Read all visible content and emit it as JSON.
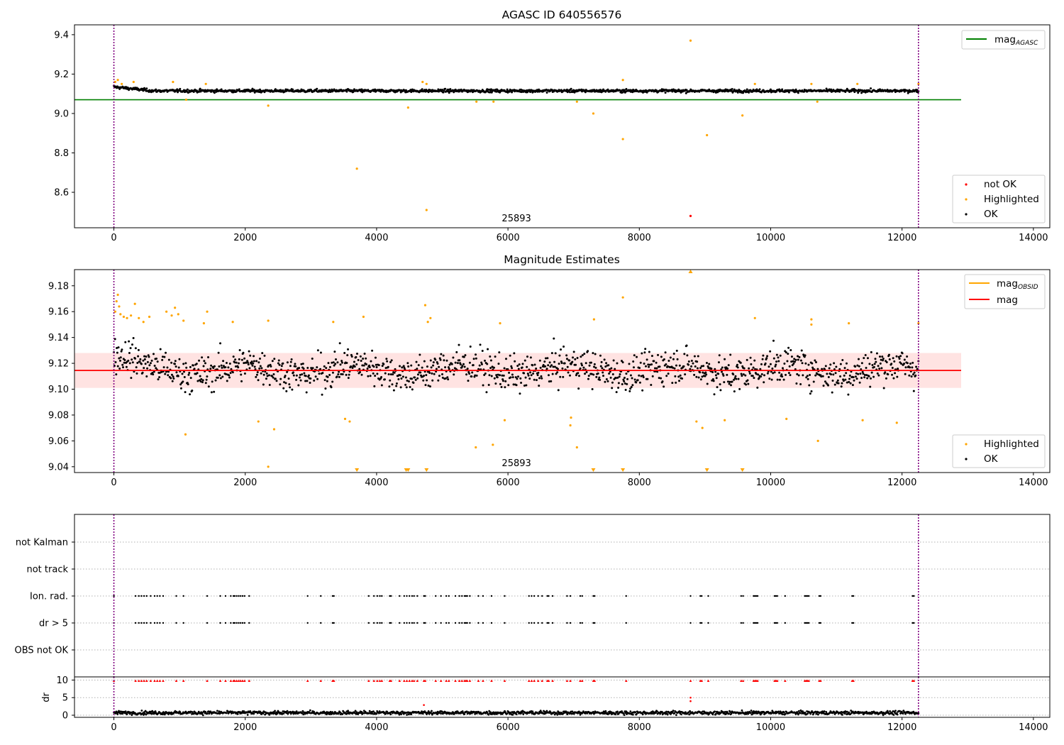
{
  "chart_data": [
    {
      "type": "scatter",
      "title": "AGASC ID 640556576",
      "xlim": [
        -600,
        14250
      ],
      "ylim": [
        8.42,
        9.45
      ],
      "xticks": [
        "0",
        "2000",
        "4000",
        "6000",
        "8000",
        "10000",
        "12000",
        "14000"
      ],
      "yticks": [
        "8.6",
        "8.8",
        "9.0",
        "9.2",
        "9.4"
      ],
      "xtick_values": [
        0,
        2000,
        4000,
        6000,
        8000,
        10000,
        12000,
        14000
      ],
      "ytick_values": [
        8.6,
        8.8,
        9.0,
        9.2,
        9.4
      ],
      "vlines": [
        0,
        12250
      ],
      "annotation": "25893",
      "annotation_x": 6000,
      "agasc_mag": 9.07,
      "ok_band": {
        "x_start": 0,
        "x_end": 12250,
        "center": 9.115,
        "spread": 0.03
      },
      "legend_lines": [
        {
          "text": "mag",
          "sub": "AGASC",
          "color": "#008000"
        }
      ],
      "legend_points": [
        {
          "text": "not OK",
          "color": "#ff0000"
        },
        {
          "text": "Highlighted",
          "color": "#ffa500"
        },
        {
          "text": "OK",
          "color": "#000000"
        }
      ],
      "series": [
        {
          "name": "Highlighted",
          "color": "#ffa500",
          "points": [
            [
              3700,
              8.72
            ],
            [
              4760,
              8.51
            ],
            [
              4480,
              9.03
            ],
            [
              5520,
              9.06
            ],
            [
              5780,
              9.06
            ],
            [
              7050,
              9.06
            ],
            [
              7300,
              9.0
            ],
            [
              7750,
              8.87
            ],
            [
              7750,
              9.17
            ],
            [
              8780,
              9.37
            ],
            [
              9030,
              8.89
            ],
            [
              9570,
              8.99
            ],
            [
              10710,
              9.06
            ],
            [
              2350,
              9.04
            ],
            [
              1100,
              9.07
            ],
            [
              20,
              9.16
            ],
            [
              60,
              9.17
            ],
            [
              120,
              9.15
            ],
            [
              300,
              9.16
            ],
            [
              900,
              9.16
            ],
            [
              1400,
              9.15
            ],
            [
              4700,
              9.16
            ],
            [
              4760,
              9.15
            ],
            [
              9760,
              9.15
            ],
            [
              10620,
              9.15
            ],
            [
              11320,
              9.15
            ],
            [
              12250,
              9.15
            ]
          ]
        },
        {
          "name": "not OK",
          "color": "#ff0000",
          "points": [
            [
              8780,
              8.48
            ]
          ]
        }
      ]
    },
    {
      "type": "scatter",
      "title": "Magnitude Estimates",
      "xlim": [
        -600,
        14250
      ],
      "ylim": [
        9.0355,
        9.1925
      ],
      "xticks": [
        "0",
        "2000",
        "4000",
        "6000",
        "8000",
        "10000",
        "12000",
        "14000"
      ],
      "yticks": [
        "9.04",
        "9.06",
        "9.08",
        "9.10",
        "9.12",
        "9.14",
        "9.16",
        "9.18"
      ],
      "xtick_values": [
        0,
        2000,
        4000,
        6000,
        8000,
        10000,
        12000,
        14000
      ],
      "ytick_values": [
        9.04,
        9.06,
        9.08,
        9.1,
        9.12,
        9.14,
        9.16,
        9.18
      ],
      "vlines": [
        0,
        12250
      ],
      "annotation": "25893",
      "annotation_x": 6000,
      "mean_mag": 9.1145,
      "mean_band": [
        9.101,
        9.128
      ],
      "ok_band": {
        "x_start": 0,
        "x_end": 12250,
        "center": 9.115,
        "spread": 0.03
      },
      "legend_lines": [
        {
          "text": "mag",
          "sub": "OBSID",
          "color": "#ffa500"
        },
        {
          "text": "mag",
          "sub": "",
          "color": "#ff0000"
        }
      ],
      "legend_points": [
        {
          "text": "Highlighted",
          "color": "#ffa500"
        },
        {
          "text": "OK",
          "color": "#000000"
        }
      ],
      "series": [
        {
          "name": "Highlighted",
          "color": "#ffa500",
          "points": [
            [
              60,
              9.173
            ],
            [
              40,
              9.168
            ],
            [
              80,
              9.164
            ],
            [
              20,
              9.16
            ],
            [
              100,
              9.158
            ],
            [
              150,
              9.156
            ],
            [
              200,
              9.155
            ],
            [
              260,
              9.157
            ],
            [
              320,
              9.166
            ],
            [
              380,
              9.155
            ],
            [
              450,
              9.152
            ],
            [
              540,
              9.156
            ],
            [
              800,
              9.16
            ],
            [
              880,
              9.157
            ],
            [
              930,
              9.163
            ],
            [
              980,
              9.158
            ],
            [
              1060,
              9.153
            ],
            [
              1420,
              9.16
            ],
            [
              1370,
              9.151
            ],
            [
              1810,
              9.152
            ],
            [
              2350,
              9.153
            ],
            [
              2200,
              9.075
            ],
            [
              2350,
              9.04
            ],
            [
              2440,
              9.069
            ],
            [
              1090,
              9.065
            ],
            [
              3340,
              9.152
            ],
            [
              3520,
              9.077
            ],
            [
              3590,
              9.075
            ],
            [
              3800,
              9.156
            ],
            [
              4740,
              9.165
            ],
            [
              4820,
              9.155
            ],
            [
              4780,
              9.152
            ],
            [
              5510,
              9.055
            ],
            [
              5770,
              9.057
            ],
            [
              5880,
              9.151
            ],
            [
              5950,
              9.076
            ],
            [
              6950,
              9.072
            ],
            [
              6960,
              9.078
            ],
            [
              7050,
              9.055
            ],
            [
              7310,
              9.154
            ],
            [
              7750,
              9.171
            ],
            [
              8870,
              9.075
            ],
            [
              8960,
              9.07
            ],
            [
              9300,
              9.076
            ],
            [
              9760,
              9.155
            ],
            [
              10240,
              9.077
            ],
            [
              10620,
              9.154
            ],
            [
              10620,
              9.15
            ],
            [
              10720,
              9.06
            ],
            [
              11190,
              9.151
            ],
            [
              11400,
              9.076
            ],
            [
              11920,
              9.074
            ],
            [
              12250,
              9.151
            ]
          ]
        }
      ],
      "offscale_markers": {
        "color": "#ffa500",
        "low": [
          3700,
          4450,
          4480,
          4760,
          7300,
          7750,
          9030,
          9570
        ],
        "high": [
          8780
        ]
      }
    },
    {
      "type": "scatter",
      "title": "",
      "xlim": [
        -600,
        14250
      ],
      "flag_rows": [
        "not Kalman",
        "not track",
        "Ion. rad.",
        "dr > 5",
        "OBS not OK"
      ],
      "flag_x": [
        0,
        330,
        380,
        420,
        460,
        500,
        560,
        620,
        660,
        700,
        750,
        950,
        1060,
        1420,
        1620,
        1700,
        1780,
        1820,
        1840,
        1870,
        1900,
        1930,
        1960,
        1990,
        2060,
        2950,
        3150,
        3330,
        3350,
        3880,
        3960,
        4010,
        4050,
        4080,
        4200,
        4220,
        4350,
        4420,
        4460,
        4500,
        4540,
        4570,
        4620,
        4720,
        4740,
        4900,
        4980,
        5060,
        5100,
        5200,
        5260,
        5300,
        5340,
        5360,
        5380,
        5420,
        5550,
        5620,
        5750,
        5950,
        6320,
        6360,
        6400,
        6460,
        6520,
        6600,
        6620,
        6680,
        6900,
        6950,
        7100,
        7130,
        7300,
        7320,
        7800,
        8780,
        8930,
        8950,
        9050,
        9550,
        9580,
        9740,
        9760,
        9780,
        9800,
        10060,
        10080,
        10100,
        10220,
        10520,
        10540,
        10560,
        10580,
        10740,
        10760,
        11240,
        11260,
        12160,
        12180
      ],
      "dr_ylim": [
        -0.6,
        10.9
      ],
      "dr_yticks": [
        "0",
        "5",
        "10"
      ],
      "dr_ytick_values": [
        0,
        5,
        10
      ],
      "dr_ylabel": "dr",
      "dr_cap": 9.8,
      "dr_ok_level": 0.7,
      "dr_outliers": [
        [
          4720,
          2.9
        ],
        [
          8780,
          5.0
        ],
        [
          8780,
          4.0
        ]
      ],
      "xticks": [
        "0",
        "2000",
        "4000",
        "6000",
        "8000",
        "10000",
        "12000",
        "14000"
      ],
      "xtick_values": [
        0,
        2000,
        4000,
        6000,
        8000,
        10000,
        12000,
        14000
      ],
      "vlines": [
        0,
        12250
      ]
    }
  ],
  "colors": {
    "ok": "#000000",
    "highlighted": "#ffa500",
    "not_ok": "#ff0000",
    "agasc_line": "#008000",
    "vline": "#800080",
    "band": "#ffcccb"
  }
}
